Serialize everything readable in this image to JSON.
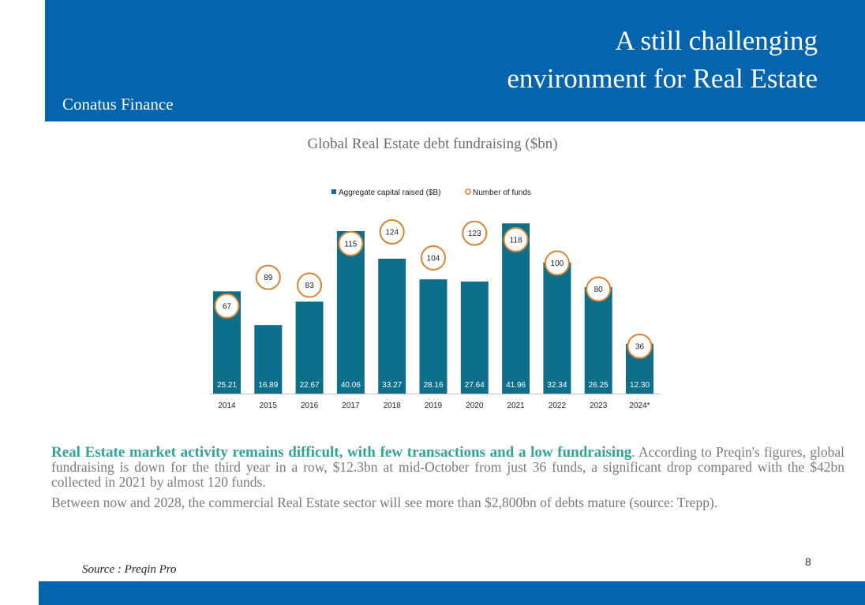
{
  "header": {
    "title_line1": "A still challenging",
    "title_line2": "environment for Real Estate",
    "brand": "Conatus Finance",
    "color": "#0464ae"
  },
  "chart_title": "Global Real Estate debt fundraising ($bn)",
  "chart_data": {
    "type": "bar",
    "categories": [
      "2014",
      "2015",
      "2016",
      "2017",
      "2018",
      "2019",
      "2020",
      "2021",
      "2022",
      "2023",
      "2024*"
    ],
    "series": [
      {
        "name": "Aggregate capital raised ($B)",
        "type": "bar",
        "color": "#0d6f8a",
        "values": [
          25.21,
          16.89,
          22.67,
          40.06,
          33.27,
          28.16,
          27.64,
          41.96,
          32.34,
          26.25,
          12.3
        ],
        "labels": [
          "25.21",
          "16.89",
          "22.67",
          "40.06",
          "33.27",
          "28.16",
          "27.64",
          "41.96",
          "32.34",
          "26.25",
          "12.30"
        ]
      },
      {
        "name": "Number of funds",
        "type": "scatter",
        "color": "#e0812e",
        "values": [
          67,
          89,
          83,
          115,
          124,
          104,
          123,
          118,
          100,
          80,
          36
        ]
      }
    ],
    "legend": "top-center",
    "grid": false
  },
  "body": {
    "lead": "Real Estate market activity remains difficult, with few transactions and a low fundraising",
    "lead_end": ".",
    "para1": "According to Preqin's figures, global fundraising is down for the third year in a row, $12.3bn at mid-October from just 36 funds, a significant drop compared with the $42bn collected in 2021 by almost 120 funds.",
    "para2": "Between now and 2028, the commercial Real Estate sector will see more than $2,800bn of debts mature (source: Trepp)."
  },
  "source": "Source : Preqin Pro",
  "page_number": "8"
}
